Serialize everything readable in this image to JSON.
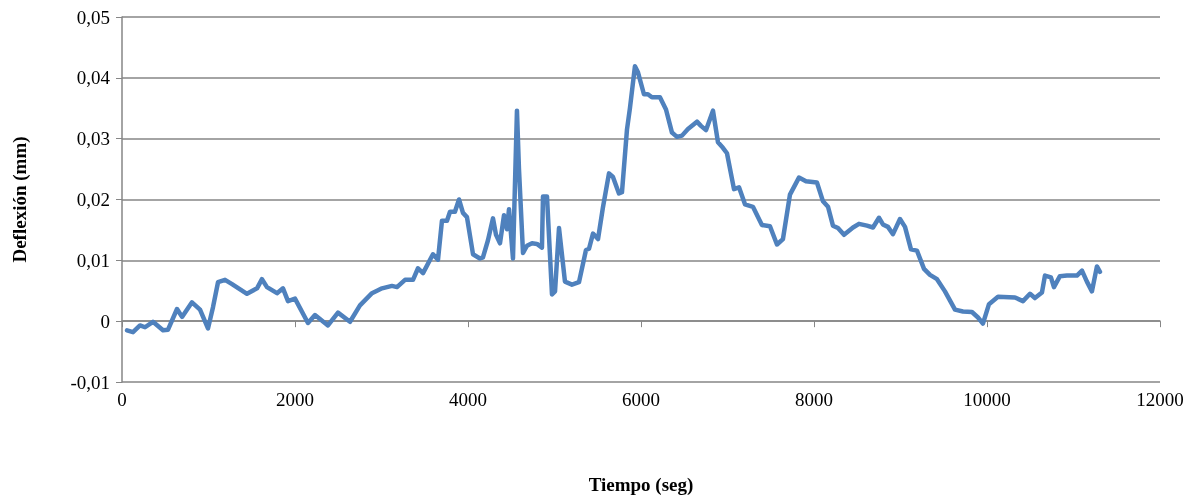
{
  "chart_data": {
    "type": "line",
    "xlabel": "Tiempo (seg)",
    "ylabel": "Deflexión (mm)",
    "xlim": [
      0,
      12000
    ],
    "xticks": [
      0,
      2000,
      4000,
      6000,
      8000,
      10000,
      12000
    ],
    "ylim": [
      -0.01,
      0.05
    ],
    "yticks": [
      {
        "value": -0.01,
        "label": "-0,01"
      },
      0,
      {
        "value": 0.01,
        "label": "0,01"
      },
      {
        "value": 0.02,
        "label": "0,02"
      },
      {
        "value": 0.03,
        "label": "0,03"
      },
      {
        "value": 0.04,
        "label": "0,04"
      },
      {
        "value": 0.05,
        "label": "0,05"
      }
    ],
    "grid": "y",
    "marker": "none",
    "line_style": "solid",
    "series": [
      {
        "color": "#4f81bd",
        "x": [
          58,
          127,
          208,
          266,
          358,
          474,
          532,
          636,
          694,
          809,
          902,
          994,
          1052,
          1110,
          1191,
          1272,
          1445,
          1561,
          1618,
          1676,
          1792,
          1861,
          1919,
          2000,
          2150,
          2231,
          2381,
          2497,
          2636,
          2751,
          2890,
          3006,
          3121,
          3179,
          3272,
          3364,
          3422,
          3480,
          3595,
          3653,
          3699,
          3757,
          3792,
          3849,
          3896,
          3942,
          3988,
          4058,
          4138,
          4173,
          4231,
          4289,
          4324,
          4370,
          4416,
          4451,
          4474,
          4520,
          4566,
          4589,
          4636,
          4682,
          4740,
          4797,
          4855,
          4867,
          4913,
          4971,
          5006,
          5052,
          5121,
          5202,
          5283,
          5364,
          5399,
          5445,
          5503,
          5560,
          5630,
          5676,
          5745,
          5780,
          5838,
          5872,
          5930,
          5965,
          6034,
          6080,
          6126,
          6219,
          6289,
          6358,
          6416,
          6474,
          6543,
          6647,
          6693,
          6751,
          6832,
          6890,
          6947,
          6994,
          7075,
          7133,
          7202,
          7294,
          7398,
          7491,
          7572,
          7641,
          7722,
          7826,
          7907,
          8034,
          8104,
          8162,
          8219,
          8277,
          8347,
          8451,
          8520,
          8612,
          8682,
          8751,
          8797,
          8855,
          8913,
          8994,
          9052,
          9121,
          9190,
          9272,
          9341,
          9422,
          9514,
          9630,
          9722,
          9826,
          9896,
          9953,
          10023,
          10127,
          10323,
          10416,
          10497,
          10554,
          10635,
          10670,
          10739,
          10774,
          10843,
          10924,
          11040,
          11098,
          11155,
          11213,
          11271,
          11306
        ],
        "values": [
          -0.0015,
          -0.0018,
          -0.0007,
          -0.001,
          -0.0001,
          -0.0015,
          -0.0014,
          0.002,
          0.0007,
          0.0031,
          0.0019,
          -0.0012,
          0.0023,
          0.0064,
          0.0068,
          0.0061,
          0.0045,
          0.0054,
          0.0069,
          0.0056,
          0.0046,
          0.0054,
          0.0033,
          0.0037,
          -0.0003,
          0.001,
          -0.0007,
          0.0014,
          -0.0001,
          0.0026,
          0.0046,
          0.0054,
          0.0058,
          0.0056,
          0.0068,
          0.0068,
          0.0087,
          0.0079,
          0.011,
          0.0101,
          0.0165,
          0.0165,
          0.018,
          0.018,
          0.02,
          0.0178,
          0.0171,
          0.011,
          0.0103,
          0.0105,
          0.0133,
          0.0169,
          0.0142,
          0.0128,
          0.0174,
          0.0151,
          0.0184,
          0.0103,
          0.0346,
          0.0251,
          0.0112,
          0.0124,
          0.0128,
          0.0127,
          0.0121,
          0.0205,
          0.0205,
          0.0044,
          0.0049,
          0.0153,
          0.0065,
          0.006,
          0.0064,
          0.0117,
          0.0119,
          0.0144,
          0.0135,
          0.0187,
          0.0243,
          0.0237,
          0.021,
          0.0212,
          0.0315,
          0.035,
          0.0419,
          0.0409,
          0.0373,
          0.0373,
          0.0368,
          0.0368,
          0.0348,
          0.031,
          0.0303,
          0.0305,
          0.0316,
          0.0328,
          0.0321,
          0.0314,
          0.0346,
          0.0294,
          0.0285,
          0.0276,
          0.0217,
          0.022,
          0.0192,
          0.0188,
          0.0158,
          0.0156,
          0.0126,
          0.0135,
          0.0208,
          0.0236,
          0.023,
          0.0228,
          0.0197,
          0.0188,
          0.0157,
          0.0153,
          0.0142,
          0.0154,
          0.016,
          0.0157,
          0.0154,
          0.017,
          0.0159,
          0.0155,
          0.0143,
          0.0168,
          0.0155,
          0.0118,
          0.0116,
          0.0086,
          0.0076,
          0.0069,
          0.0049,
          0.0019,
          0.0016,
          0.0015,
          0.0006,
          -0.0004,
          0.0028,
          0.004,
          0.0039,
          0.0033,
          0.0045,
          0.0038,
          0.0047,
          0.0075,
          0.0072,
          0.0056,
          0.0074,
          0.0075,
          0.0075,
          0.0083,
          0.0065,
          0.0049,
          0.009,
          0.0081
        ]
      }
    ]
  }
}
